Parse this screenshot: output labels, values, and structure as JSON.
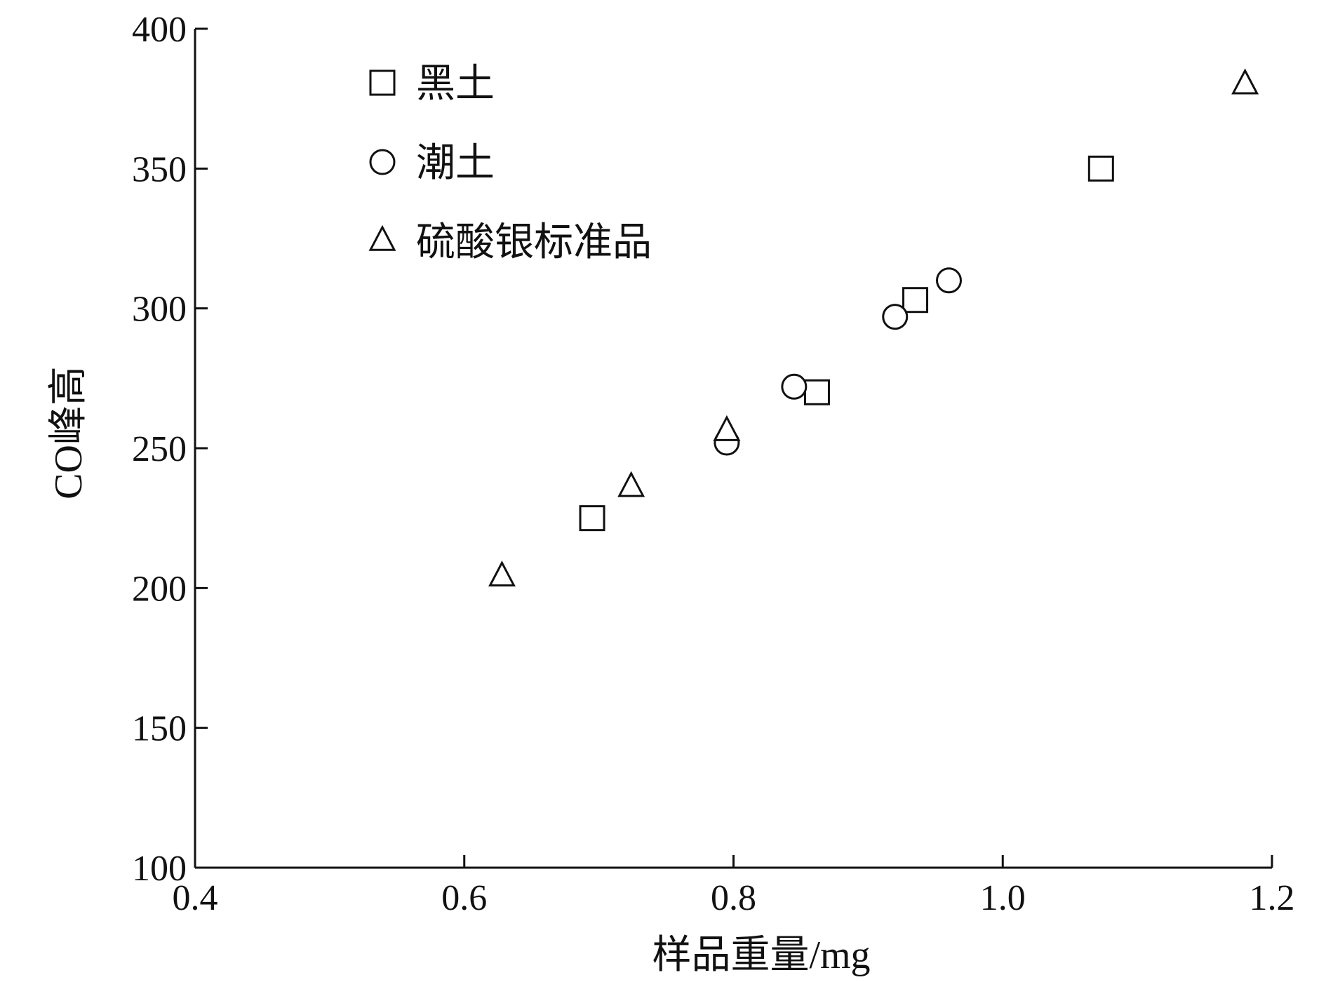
{
  "chart_data": {
    "type": "scatter",
    "xlabel": "样品重量/mg",
    "ylabel": "CO峰高",
    "xlim": [
      0.4,
      1.2
    ],
    "ylim": [
      100,
      400
    ],
    "x_ticks": [
      "0.4",
      "0.6",
      "0.8",
      "1.0",
      "1.2"
    ],
    "y_ticks": [
      "100",
      "150",
      "200",
      "250",
      "300",
      "350",
      "400"
    ],
    "grid": false,
    "legend_position": "top-left",
    "series": [
      {
        "name": "黑土",
        "marker": "square",
        "points": [
          {
            "x": 0.695,
            "y": 225
          },
          {
            "x": 0.862,
            "y": 270
          },
          {
            "x": 0.935,
            "y": 303
          },
          {
            "x": 1.073,
            "y": 350
          }
        ]
      },
      {
        "name": "潮土",
        "marker": "circle",
        "points": [
          {
            "x": 0.795,
            "y": 252
          },
          {
            "x": 0.845,
            "y": 272
          },
          {
            "x": 0.92,
            "y": 297
          },
          {
            "x": 0.96,
            "y": 310
          }
        ]
      },
      {
        "name": "硫酸银标准品",
        "marker": "triangle",
        "points": [
          {
            "x": 0.628,
            "y": 204
          },
          {
            "x": 0.724,
            "y": 236
          },
          {
            "x": 0.795,
            "y": 256
          },
          {
            "x": 1.18,
            "y": 380
          }
        ]
      }
    ]
  }
}
